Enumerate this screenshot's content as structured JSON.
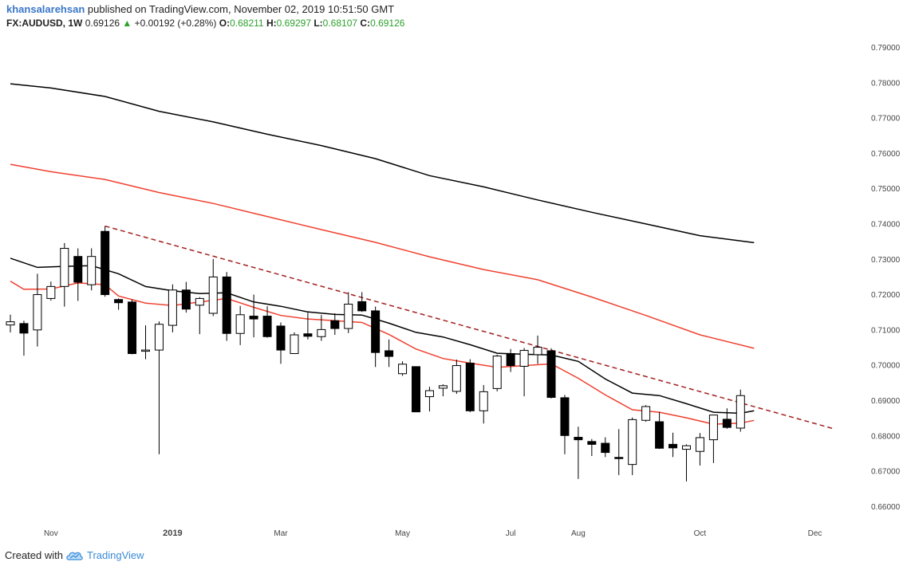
{
  "header": {
    "author": "khansalarehsan",
    "published_text": "published on TradingView.com, November 02, 2019 10:51:50 GMT",
    "symbol": "FX:AUDUSD, 1W",
    "last_price": "0.69126",
    "change": "+0.00192 (+0.28%)",
    "o_label": "O:",
    "o_value": "0.68211",
    "h_label": "H:",
    "h_value": "0.69297",
    "l_label": "L:",
    "l_value": "0.68107",
    "c_label": "C:",
    "c_value": "0.69126",
    "up_color": "#2ca12c"
  },
  "footer": {
    "created_with": "Created with",
    "brand": "TradingView",
    "brand_color": "#3a8ad8"
  },
  "chart_data": {
    "type": "candlestick",
    "y_range": [
      0.655,
      0.79
    ],
    "y_ticks": [
      "0.79000",
      "0.78000",
      "0.77000",
      "0.76000",
      "0.75000",
      "0.74000",
      "0.73000",
      "0.72000",
      "0.71000",
      "0.70000",
      "0.69000",
      "0.68000",
      "0.67000",
      "0.66000"
    ],
    "y_tick_values": [
      0.79,
      0.78,
      0.77,
      0.76,
      0.75,
      0.74,
      0.73,
      0.72,
      0.71,
      0.7,
      0.69,
      0.68,
      0.67,
      0.66
    ],
    "x_ticks": [
      {
        "label": "Nov",
        "week": 3
      },
      {
        "label": "2019",
        "week": 12
      },
      {
        "label": "Mar",
        "week": 20
      },
      {
        "label": "May",
        "week": 29
      },
      {
        "label": "Jul",
        "week": 37
      },
      {
        "label": "Aug",
        "week": 42
      },
      {
        "label": "Oct",
        "week": 51
      },
      {
        "label": "Dec",
        "week": 59.5
      }
    ],
    "candles": [
      {
        "o": 0.7113,
        "h": 0.7142,
        "l": 0.7092,
        "c": 0.7122
      },
      {
        "o": 0.7117,
        "h": 0.7125,
        "l": 0.7026,
        "c": 0.709
      },
      {
        "o": 0.7099,
        "h": 0.7258,
        "l": 0.7052,
        "c": 0.7199
      },
      {
        "o": 0.7188,
        "h": 0.7236,
        "l": 0.7182,
        "c": 0.7222
      },
      {
        "o": 0.7222,
        "h": 0.7345,
        "l": 0.7165,
        "c": 0.733
      },
      {
        "o": 0.7307,
        "h": 0.733,
        "l": 0.7181,
        "c": 0.7234
      },
      {
        "o": 0.7227,
        "h": 0.733,
        "l": 0.7211,
        "c": 0.7307
      },
      {
        "o": 0.7378,
        "h": 0.7393,
        "l": 0.7193,
        "c": 0.7199
      },
      {
        "o": 0.7185,
        "h": 0.7188,
        "l": 0.7156,
        "c": 0.7176
      },
      {
        "o": 0.7178,
        "h": 0.7185,
        "l": 0.703,
        "c": 0.7032
      },
      {
        "o": 0.704,
        "h": 0.7112,
        "l": 0.7016,
        "c": 0.7042
      },
      {
        "o": 0.7042,
        "h": 0.7123,
        "l": 0.6747,
        "c": 0.7115
      },
      {
        "o": 0.7112,
        "h": 0.7228,
        "l": 0.7092,
        "c": 0.7212
      },
      {
        "o": 0.7212,
        "h": 0.7235,
        "l": 0.7148,
        "c": 0.7158
      },
      {
        "o": 0.7169,
        "h": 0.7192,
        "l": 0.7087,
        "c": 0.7188
      },
      {
        "o": 0.7146,
        "h": 0.73,
        "l": 0.7138,
        "c": 0.7249
      },
      {
        "o": 0.7249,
        "h": 0.7263,
        "l": 0.7068,
        "c": 0.7089
      },
      {
        "o": 0.7089,
        "h": 0.7167,
        "l": 0.7056,
        "c": 0.7142
      },
      {
        "o": 0.7138,
        "h": 0.7199,
        "l": 0.7078,
        "c": 0.713
      },
      {
        "o": 0.7138,
        "h": 0.7166,
        "l": 0.7077,
        "c": 0.708
      },
      {
        "o": 0.711,
        "h": 0.712,
        "l": 0.7003,
        "c": 0.7042
      },
      {
        "o": 0.7032,
        "h": 0.7092,
        "l": 0.7032,
        "c": 0.7085
      },
      {
        "o": 0.7088,
        "h": 0.7148,
        "l": 0.7072,
        "c": 0.7081
      },
      {
        "o": 0.708,
        "h": 0.7141,
        "l": 0.7068,
        "c": 0.71
      },
      {
        "o": 0.7125,
        "h": 0.7146,
        "l": 0.7085,
        "c": 0.7103
      },
      {
        "o": 0.7103,
        "h": 0.7206,
        "l": 0.709,
        "c": 0.7172
      },
      {
        "o": 0.7179,
        "h": 0.7206,
        "l": 0.715,
        "c": 0.7153
      },
      {
        "o": 0.7153,
        "h": 0.7165,
        "l": 0.6994,
        "c": 0.7035
      },
      {
        "o": 0.704,
        "h": 0.7072,
        "l": 0.6994,
        "c": 0.7024
      },
      {
        "o": 0.6975,
        "h": 0.701,
        "l": 0.6969,
        "c": 0.7002
      },
      {
        "o": 0.6995,
        "h": 0.6995,
        "l": 0.6866,
        "c": 0.6867
      },
      {
        "o": 0.691,
        "h": 0.6938,
        "l": 0.6868,
        "c": 0.6927
      },
      {
        "o": 0.6934,
        "h": 0.6945,
        "l": 0.6911,
        "c": 0.6941
      },
      {
        "o": 0.6925,
        "h": 0.7015,
        "l": 0.6918,
        "c": 0.6998
      },
      {
        "o": 0.7005,
        "h": 0.7016,
        "l": 0.6866,
        "c": 0.687
      },
      {
        "o": 0.687,
        "h": 0.6943,
        "l": 0.6834,
        "c": 0.6924
      },
      {
        "o": 0.6933,
        "h": 0.7029,
        "l": 0.6925,
        "c": 0.7025
      },
      {
        "o": 0.7032,
        "h": 0.7045,
        "l": 0.698,
        "c": 0.6998
      },
      {
        "o": 0.6996,
        "h": 0.7048,
        "l": 0.6911,
        "c": 0.7041
      },
      {
        "o": 0.7029,
        "h": 0.7083,
        "l": 0.7003,
        "c": 0.705
      },
      {
        "o": 0.704,
        "h": 0.7047,
        "l": 0.6905,
        "c": 0.6908
      },
      {
        "o": 0.6907,
        "h": 0.6915,
        "l": 0.6747,
        "c": 0.68
      },
      {
        "o": 0.6795,
        "h": 0.6825,
        "l": 0.6677,
        "c": 0.6788
      },
      {
        "o": 0.6783,
        "h": 0.679,
        "l": 0.6742,
        "c": 0.6775
      },
      {
        "o": 0.6778,
        "h": 0.6795,
        "l": 0.6739,
        "c": 0.6752
      },
      {
        "o": 0.6738,
        "h": 0.6818,
        "l": 0.6688,
        "c": 0.6736
      },
      {
        "o": 0.6718,
        "h": 0.6851,
        "l": 0.6688,
        "c": 0.6845
      },
      {
        "o": 0.6843,
        "h": 0.6886,
        "l": 0.6839,
        "c": 0.6882
      },
      {
        "o": 0.6839,
        "h": 0.6867,
        "l": 0.6762,
        "c": 0.6764
      },
      {
        "o": 0.6775,
        "h": 0.6808,
        "l": 0.6739,
        "c": 0.6765
      },
      {
        "o": 0.6761,
        "h": 0.6775,
        "l": 0.667,
        "c": 0.6771
      },
      {
        "o": 0.6755,
        "h": 0.6807,
        "l": 0.6715,
        "c": 0.6794
      },
      {
        "o": 0.6788,
        "h": 0.6858,
        "l": 0.6722,
        "c": 0.6858
      },
      {
        "o": 0.6846,
        "h": 0.6877,
        "l": 0.6819,
        "c": 0.6823
      },
      {
        "o": 0.6821,
        "h": 0.693,
        "l": 0.6811,
        "c": 0.6913
      }
    ],
    "ma_black_fast": [
      [
        0,
        0.7302
      ],
      [
        2,
        0.7276
      ],
      [
        4,
        0.7279
      ],
      [
        6,
        0.7281
      ],
      [
        8,
        0.7258
      ],
      [
        10,
        0.7222
      ],
      [
        12,
        0.721
      ],
      [
        14,
        0.7202
      ],
      [
        16,
        0.7204
      ],
      [
        18,
        0.7178
      ],
      [
        20,
        0.7166
      ],
      [
        22,
        0.715
      ],
      [
        24,
        0.7143
      ],
      [
        26,
        0.7141
      ],
      [
        28,
        0.7118
      ],
      [
        30,
        0.7092
      ],
      [
        32,
        0.7079
      ],
      [
        34,
        0.7057
      ],
      [
        36,
        0.7033
      ],
      [
        38,
        0.703
      ],
      [
        40,
        0.7028
      ],
      [
        42,
        0.701
      ],
      [
        44,
        0.696
      ],
      [
        46,
        0.692
      ],
      [
        48,
        0.6913
      ],
      [
        50,
        0.689
      ],
      [
        52,
        0.6866
      ],
      [
        54,
        0.6863
      ],
      [
        55,
        0.687
      ]
    ],
    "ma_red_fast": [
      [
        0,
        0.7237
      ],
      [
        1,
        0.7214
      ],
      [
        3,
        0.7215
      ],
      [
        5,
        0.7232
      ],
      [
        7,
        0.7227
      ],
      [
        8,
        0.7195
      ],
      [
        10,
        0.7175
      ],
      [
        12,
        0.7168
      ],
      [
        14,
        0.7178
      ],
      [
        16,
        0.7188
      ],
      [
        18,
        0.7163
      ],
      [
        20,
        0.714
      ],
      [
        22,
        0.713
      ],
      [
        24,
        0.7125
      ],
      [
        26,
        0.712
      ],
      [
        28,
        0.7086
      ],
      [
        30,
        0.7045
      ],
      [
        32,
        0.7018
      ],
      [
        34,
        0.7005
      ],
      [
        36,
        0.6993
      ],
      [
        38,
        0.6998
      ],
      [
        40,
        0.7003
      ],
      [
        42,
        0.6962
      ],
      [
        44,
        0.6915
      ],
      [
        46,
        0.6873
      ],
      [
        48,
        0.6866
      ],
      [
        50,
        0.685
      ],
      [
        52,
        0.6832
      ],
      [
        54,
        0.6835
      ],
      [
        55,
        0.6843
      ]
    ],
    "ma_red_slow": [
      [
        0,
        0.7568
      ],
      [
        3,
        0.7547
      ],
      [
        7,
        0.7525
      ],
      [
        11,
        0.7488
      ],
      [
        15,
        0.7457
      ],
      [
        19,
        0.742
      ],
      [
        23,
        0.7383
      ],
      [
        27,
        0.7347
      ],
      [
        31,
        0.7306
      ],
      [
        35,
        0.727
      ],
      [
        39,
        0.7241
      ],
      [
        43,
        0.7192
      ],
      [
        47,
        0.714
      ],
      [
        51,
        0.7085
      ],
      [
        55,
        0.7047
      ]
    ],
    "ma_black_slow": [
      [
        0,
        0.7796
      ],
      [
        3,
        0.7784
      ],
      [
        7,
        0.776
      ],
      [
        11,
        0.7718
      ],
      [
        15,
        0.7688
      ],
      [
        19,
        0.7653
      ],
      [
        23,
        0.7621
      ],
      [
        27,
        0.7584
      ],
      [
        31,
        0.7536
      ],
      [
        35,
        0.7504
      ],
      [
        39,
        0.7467
      ],
      [
        43,
        0.7432
      ],
      [
        47,
        0.7399
      ],
      [
        51,
        0.7366
      ],
      [
        55,
        0.7346
      ]
    ],
    "trendline": {
      "from": [
        7,
        0.7393
      ],
      "to": [
        61,
        0.6818
      ],
      "color": "#a31f1f",
      "style": "dashed"
    },
    "colors": {
      "up_candle": "#ffffff",
      "down_candle": "#000000",
      "wick": "#000000",
      "ma_black": "#000000",
      "ma_red": "#f0402f",
      "axis_text": "#444444"
    }
  }
}
